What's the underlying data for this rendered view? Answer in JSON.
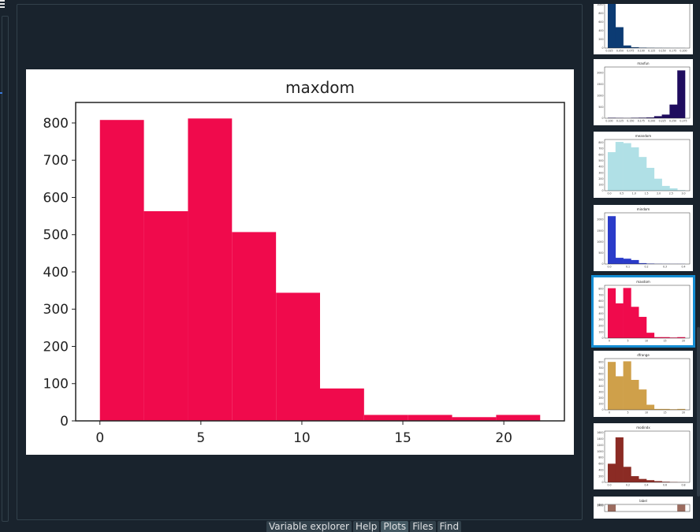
{
  "window": {
    "icons": {
      "hamburger": "hamburger-icon"
    }
  },
  "main_plot": {
    "chart_data": {
      "type": "bar",
      "title": "maxdom",
      "xlabel": "",
      "ylabel": "",
      "xlim": [
        -1.2,
        23.0
      ],
      "ylim": [
        0,
        855
      ],
      "xticks": [
        0,
        5,
        10,
        15,
        20
      ],
      "yticks": [
        0,
        100,
        200,
        300,
        400,
        500,
        600,
        700,
        800
      ],
      "bin_edges": [
        0.0,
        2.18,
        4.36,
        6.54,
        8.72,
        10.9,
        13.08,
        15.26,
        17.44,
        19.62,
        21.8
      ],
      "values": [
        808,
        563,
        812,
        507,
        344,
        87,
        16,
        16,
        10,
        16
      ],
      "color": "#f00a4c",
      "grid": false
    }
  },
  "thumbnails": {
    "items": [
      {
        "title": "",
        "chart_data": {
          "type": "bar",
          "color": "#0c3b73",
          "xticks": [
            "0.025",
            "0.050",
            "0.075",
            "0.100",
            "0.125",
            "0.150",
            "0.175",
            "0.200"
          ],
          "yticks": [
            "0",
            "200",
            "400",
            "600",
            "800",
            "1000"
          ],
          "ylim": [
            0,
            1050
          ],
          "values": [
            1080,
            480,
            60,
            20,
            10,
            6,
            4,
            3,
            2,
            2
          ]
        }
      },
      {
        "title": "maxfun",
        "chart_data": {
          "type": "bar",
          "color": "#1f0c5e",
          "xticks": [
            "0.100",
            "0.125",
            "0.150",
            "0.175",
            "0.200",
            "0.225",
            "0.250",
            "0.275"
          ],
          "yticks": [
            "0",
            "500",
            "1000",
            "1500",
            "2000"
          ],
          "ylim": [
            0,
            2250
          ],
          "values": [
            20,
            15,
            10,
            20,
            25,
            35,
            90,
            160,
            600,
            2100
          ]
        }
      },
      {
        "title": "meandom",
        "chart_data": {
          "type": "bar",
          "color": "#b0e0e6",
          "xticks": [
            "0.0",
            "0.5",
            "1.0",
            "1.5",
            "2.0",
            "2.5",
            "3.0"
          ],
          "yticks": [
            "0",
            "100",
            "200",
            "300",
            "400",
            "500",
            "600",
            "700",
            "800"
          ],
          "ylim": [
            0,
            850
          ],
          "values": [
            640,
            810,
            790,
            720,
            560,
            380,
            200,
            80,
            40,
            10
          ]
        }
      },
      {
        "title": "mindom",
        "chart_data": {
          "type": "bar",
          "color": "#2a3bc9",
          "xticks": [
            "0.0",
            "0.1",
            "0.2",
            "0.3",
            "0.4"
          ],
          "yticks": [
            "0",
            "500",
            "1000",
            "1500",
            "2000"
          ],
          "ylim": [
            0,
            2300
          ],
          "values": [
            2150,
            280,
            240,
            180,
            40,
            20,
            10,
            8,
            6,
            6
          ]
        }
      },
      {
        "title": "maxdom",
        "selected": true,
        "chart_data": {
          "type": "bar",
          "color": "#f00a4c",
          "xticks": [
            "0",
            "5",
            "10",
            "15",
            "20"
          ],
          "yticks": [
            "0",
            "100",
            "200",
            "300",
            "400",
            "500",
            "600",
            "700",
            "800"
          ],
          "ylim": [
            0,
            855
          ],
          "values": [
            808,
            563,
            812,
            507,
            344,
            87,
            16,
            16,
            10,
            16
          ]
        }
      },
      {
        "title": "dfrange",
        "chart_data": {
          "type": "bar",
          "color": "#cfa04a",
          "xticks": [
            "0",
            "5",
            "10",
            "15",
            "20"
          ],
          "yticks": [
            "0",
            "100",
            "200",
            "300",
            "400",
            "500",
            "600",
            "700",
            "800"
          ],
          "ylim": [
            0,
            855
          ],
          "values": [
            800,
            560,
            810,
            500,
            340,
            85,
            15,
            15,
            10,
            15
          ]
        }
      },
      {
        "title": "modindx",
        "chart_data": {
          "type": "bar",
          "color": "#8b2b24",
          "xticks": [
            "0.0",
            "0.2",
            "0.4",
            "0.6",
            "0.8"
          ],
          "yticks": [
            "0",
            "200",
            "400",
            "600",
            "800",
            "1000",
            "1200",
            "1400",
            "1600"
          ],
          "ylim": [
            0,
            1650
          ],
          "values": [
            600,
            1450,
            500,
            200,
            110,
            70,
            40,
            20,
            10,
            5
          ]
        }
      },
      {
        "title": "label",
        "chart_data": {
          "type": "bar",
          "color": "#9b6b5e",
          "xticks": [],
          "yticks": [
            "1400",
            "1600"
          ],
          "ylim": [
            0,
            1650
          ],
          "values": [
            1584,
            0,
            0,
            0,
            0,
            0,
            0,
            0,
            0,
            1584
          ]
        }
      }
    ]
  },
  "tabs": [
    {
      "label": "Variable explorer",
      "active": false
    },
    {
      "label": "Help",
      "active": false
    },
    {
      "label": "Plots",
      "active": true
    },
    {
      "label": "Files",
      "active": false
    },
    {
      "label": "Find",
      "active": false
    }
  ]
}
